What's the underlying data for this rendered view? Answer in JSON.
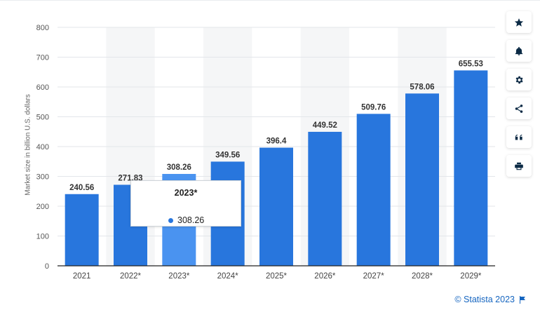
{
  "chart_data": {
    "type": "bar",
    "categories": [
      "2021",
      "2022*",
      "2023*",
      "2024*",
      "2025*",
      "2026*",
      "2027*",
      "2028*",
      "2029*"
    ],
    "values": [
      240.56,
      271.83,
      308.26,
      349.56,
      396.4,
      449.52,
      509.76,
      578.06,
      655.53
    ],
    "value_labels": [
      "240.56",
      "271.83",
      "308.26",
      "349.56",
      "396.4",
      "449.52",
      "509.76",
      "578.06",
      "655.53"
    ],
    "ylabel": "Market size in billion U.S. dollars",
    "ylim": [
      0,
      800
    ],
    "yticks": [
      "0",
      "100",
      "200",
      "300",
      "400",
      "500",
      "600",
      "700",
      "800"
    ],
    "grid": true,
    "highlighted_category": "2023*",
    "colors": {
      "bar": "#2876dd",
      "bar_highlight": "#4a93f0",
      "band": "#f5f6f7",
      "grid": "#e3e6ea"
    }
  },
  "tooltip": {
    "title": "2023*",
    "value": "308.26",
    "dot_color": "#2876dd"
  },
  "toolbar": [
    "star-icon",
    "bell-icon",
    "gear-icon",
    "share-icon",
    "quote-icon",
    "print-icon"
  ],
  "credit": {
    "text": "© Statista 2023"
  }
}
